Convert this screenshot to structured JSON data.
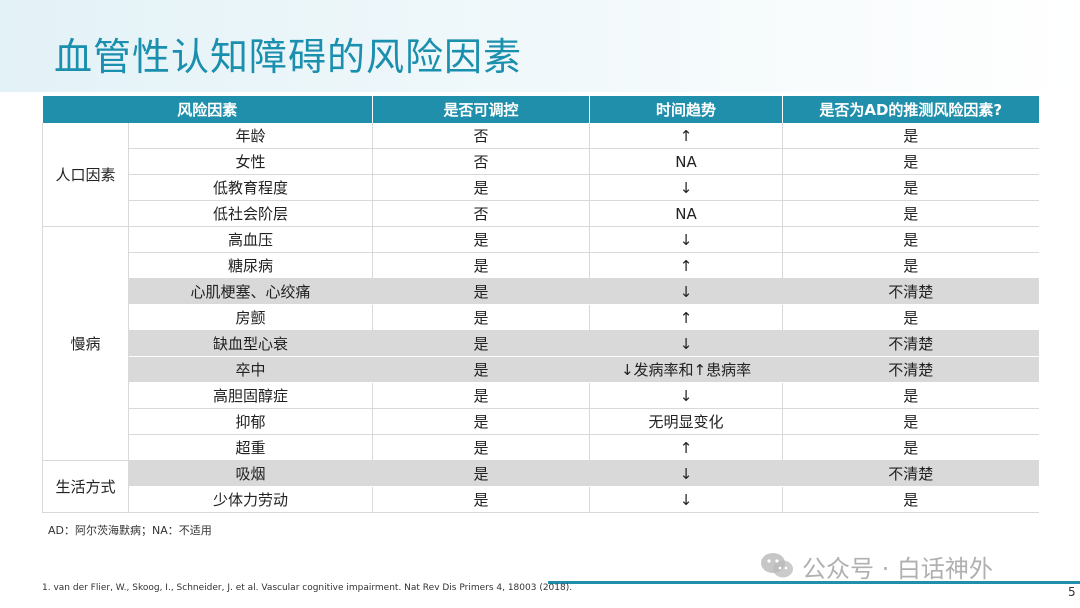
{
  "title": "血管性认知障碍的风险因素",
  "table": {
    "headers": [
      "风险因素",
      "是否可调控",
      "时间趋势",
      "是否为AD的推测风险因素?"
    ],
    "groups": [
      {
        "name": "人口因素",
        "rows": [
          {
            "factor": "年龄",
            "modifiable": "否",
            "trend": "↑",
            "ad_risk": "是",
            "shaded": false
          },
          {
            "factor": "女性",
            "modifiable": "否",
            "trend": "NA",
            "ad_risk": "是",
            "shaded": false
          },
          {
            "factor": "低教育程度",
            "modifiable": "是",
            "trend": "↓",
            "ad_risk": "是",
            "shaded": false
          },
          {
            "factor": "低社会阶层",
            "modifiable": "否",
            "trend": "NA",
            "ad_risk": "是",
            "shaded": false
          }
        ]
      },
      {
        "name": "慢病",
        "rows": [
          {
            "factor": "高血压",
            "modifiable": "是",
            "trend": "↓",
            "ad_risk": "是",
            "shaded": false
          },
          {
            "factor": "糖尿病",
            "modifiable": "是",
            "trend": "↑",
            "ad_risk": "是",
            "shaded": false
          },
          {
            "factor": "心肌梗塞、心绞痛",
            "modifiable": "是",
            "trend": "↓",
            "ad_risk": "不清楚",
            "shaded": true
          },
          {
            "factor": "房颤",
            "modifiable": "是",
            "trend": "↑",
            "ad_risk": "是",
            "shaded": false
          },
          {
            "factor": "缺血型心衰",
            "modifiable": "是",
            "trend": "↓",
            "ad_risk": "不清楚",
            "shaded": true
          },
          {
            "factor": "卒中",
            "modifiable": "是",
            "trend": "↓发病率和↑患病率",
            "ad_risk": "不清楚",
            "shaded": true
          },
          {
            "factor": "高胆固醇症",
            "modifiable": "是",
            "trend": "↓",
            "ad_risk": "是",
            "shaded": false
          },
          {
            "factor": "抑郁",
            "modifiable": "是",
            "trend": "无明显变化",
            "ad_risk": "是",
            "shaded": false
          },
          {
            "factor": "超重",
            "modifiable": "是",
            "trend": "↑",
            "ad_risk": "是",
            "shaded": false
          }
        ]
      },
      {
        "name": "生活方式",
        "rows": [
          {
            "factor": "吸烟",
            "modifiable": "是",
            "trend": "↓",
            "ad_risk": "不清楚",
            "shaded": true
          },
          {
            "factor": "少体力劳动",
            "modifiable": "是",
            "trend": "↓",
            "ad_risk": "是",
            "shaded": false
          }
        ]
      }
    ]
  },
  "abbreviations": "AD：阿尔茨海默病；NA：不适用",
  "reference": "1.      van der Flier, W., Skoog, I., Schneider, J. et al. Vascular cognitive impairment. Nat Rev Dis Primers 4, 18003 (2018).",
  "page_number": "5",
  "watermark": {
    "text": "公众号 · 白话神外",
    "icon": "wechat-icon"
  },
  "colors": {
    "accent": "#1f8fab",
    "title": "#1a8fae",
    "shade": "#d9d9d9"
  }
}
